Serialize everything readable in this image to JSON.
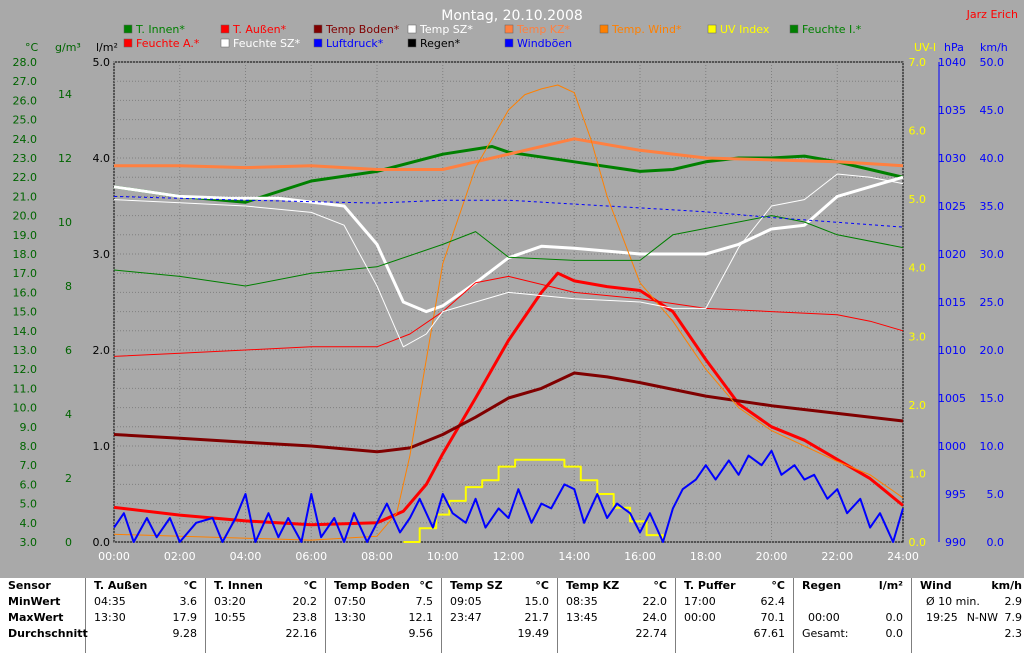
{
  "title": "Montag, 20.10.2008",
  "author": "Jarz Erich",
  "colors": {
    "bg": "#a9a9a9",
    "t_innen": "#008000",
    "t_aussen": "#ff0000",
    "temp_boden": "#800000",
    "temp_sz": "#ffffff",
    "temp_kz": "#ff8040",
    "temp_wind": "#ff8000",
    "uv": "#ffff00",
    "feuchte_i": "#008000",
    "feuchte_a": "#ff0000",
    "feuchte_sz": "#ffffff",
    "luftdruck": "#0000ff",
    "regen": "#000000",
    "windboeen": "#0000ff"
  },
  "legend": [
    {
      "label": "T. Innen*",
      "color": "#008000",
      "row": 0,
      "col": 0
    },
    {
      "label": "T. Außen*",
      "color": "#ff0000",
      "row": 0,
      "col": 1
    },
    {
      "label": "Temp Boden*",
      "color": "#800000",
      "row": 0,
      "col": 2
    },
    {
      "label": "Temp SZ*",
      "color": "#ffffff",
      "row": 0,
      "col": 3
    },
    {
      "label": "Temp KZ*",
      "color": "#ff8040",
      "row": 0,
      "col": 4
    },
    {
      "label": "Temp. Wind*",
      "color": "#ff8000",
      "row": 0,
      "col": 5
    },
    {
      "label": "UV Index",
      "color": "#ffff00",
      "row": 0,
      "col": 6
    },
    {
      "label": "Feuchte I.*",
      "color": "#008000",
      "row": 0,
      "col": 7
    },
    {
      "label": "Feuchte A.*",
      "color": "#ff0000",
      "row": 1,
      "col": 0
    },
    {
      "label": "Feuchte SZ*",
      "color": "#ffffff",
      "row": 1,
      "col": 1
    },
    {
      "label": "Luftdruck*",
      "color": "#0000ff",
      "row": 1,
      "col": 2
    },
    {
      "label": "Regen*",
      "color": "#000000",
      "row": 1,
      "col": 3
    },
    {
      "label": "Windböen",
      "color": "#0000ff",
      "row": 1,
      "col": 4
    }
  ],
  "chart_data": {
    "type": "line",
    "grid": true,
    "axes": {
      "x": {
        "ticks": [
          "00:00",
          "02:00",
          "04:00",
          "06:00",
          "08:00",
          "10:00",
          "12:00",
          "14:00",
          "16:00",
          "18:00",
          "20:00",
          "22:00",
          "24:00"
        ],
        "range": [
          0,
          24
        ]
      },
      "temp_c": {
        "unit": "°C",
        "range": [
          3.0,
          28.0
        ],
        "ticks": [
          "3.0",
          "4.0",
          "5.0",
          "6.0",
          "7.0",
          "8.0",
          "9.0",
          "10.0",
          "11.0",
          "12.0",
          "13.0",
          "14.0",
          "15.0",
          "16.0",
          "17.0",
          "18.0",
          "19.0",
          "20.0",
          "21.0",
          "22.0",
          "23.0",
          "24.0",
          "25.0",
          "26.0",
          "27.0",
          "28.0"
        ]
      },
      "humidity_gm3": {
        "unit": "g/m³",
        "range": [
          0,
          15
        ],
        "ticks": [
          "0",
          "2",
          "4",
          "6",
          "8",
          "10",
          "12",
          "14"
        ]
      },
      "rain_lm2": {
        "unit": "l/m²",
        "range": [
          0.0,
          5.0
        ],
        "ticks": [
          "0.0",
          "1.0",
          "2.0",
          "3.0",
          "4.0",
          "5.0"
        ]
      },
      "uv_index": {
        "unit": "UV-I",
        "range": [
          0.0,
          7.0
        ],
        "ticks": [
          "0.0",
          "1.0",
          "2.0",
          "3.0",
          "4.0",
          "5.0",
          "6.0",
          "7.0"
        ]
      },
      "pressure_hpa": {
        "unit": "hPa",
        "range": [
          990,
          1040
        ],
        "ticks": [
          "990",
          "995",
          "1000",
          "1005",
          "1010",
          "1015",
          "1020",
          "1025",
          "1030",
          "1035",
          "1040"
        ]
      },
      "wind_kmh": {
        "unit": "km/h",
        "range": [
          0.0,
          50.0
        ],
        "ticks": [
          "0.0",
          "5.0",
          "10.0",
          "15.0",
          "20.0",
          "25.0",
          "30.0",
          "35.0",
          "40.0",
          "45.0",
          "50.0"
        ]
      }
    },
    "series": [
      {
        "name": "T. Innen*",
        "axis": "temp_c",
        "color": "#008000",
        "width": 3,
        "x": [
          0,
          2,
          4,
          6,
          8,
          10,
          11.5,
          12,
          14,
          16,
          17,
          18,
          19,
          20,
          21,
          22,
          23,
          24
        ],
        "y": [
          21.5,
          21.0,
          20.7,
          21.8,
          22.3,
          23.2,
          23.6,
          23.3,
          22.8,
          22.3,
          22.4,
          22.8,
          23.0,
          23.0,
          23.1,
          22.8,
          22.4,
          22.0
        ]
      },
      {
        "name": "T. Außen*",
        "axis": "temp_c",
        "color": "#ff0000",
        "width": 3,
        "x": [
          0,
          2,
          4,
          6,
          8,
          8.8,
          9.5,
          10,
          11,
          12,
          13,
          13.5,
          14,
          15,
          16,
          17,
          18,
          19,
          20,
          21,
          22,
          23,
          24
        ],
        "y": [
          4.8,
          4.4,
          4.1,
          3.9,
          4.0,
          4.6,
          6.0,
          7.6,
          10.5,
          13.5,
          16.0,
          17.0,
          16.6,
          16.3,
          16.1,
          15.0,
          12.5,
          10.2,
          9.0,
          8.3,
          7.3,
          6.3,
          4.9
        ]
      },
      {
        "name": "Temp Boden*",
        "axis": "temp_c",
        "color": "#800000",
        "width": 3,
        "x": [
          0,
          2,
          4,
          6,
          8,
          9,
          10,
          11,
          12,
          13,
          14,
          15,
          16,
          18,
          20,
          22,
          24
        ],
        "y": [
          8.6,
          8.4,
          8.2,
          8.0,
          7.7,
          7.9,
          8.6,
          9.5,
          10.5,
          11.0,
          11.8,
          11.6,
          11.3,
          10.6,
          10.1,
          9.7,
          9.3
        ]
      },
      {
        "name": "Temp SZ*",
        "axis": "temp_c",
        "color": "#ffffff",
        "width": 3,
        "x": [
          0,
          2,
          3.5,
          5,
          7,
          8,
          8.8,
          9.5,
          10,
          11,
          12,
          13,
          14,
          16,
          17,
          18,
          19,
          20,
          21,
          22,
          23,
          24
        ],
        "y": [
          21.5,
          21.0,
          20.9,
          20.9,
          20.5,
          18.5,
          15.5,
          15.0,
          15.3,
          16.5,
          17.8,
          18.4,
          18.3,
          18.0,
          18.0,
          18.0,
          18.5,
          19.3,
          19.5,
          21.0,
          21.5,
          22.0
        ]
      },
      {
        "name": "Temp KZ*",
        "axis": "temp_c",
        "color": "#ff8040",
        "width": 3,
        "x": [
          0,
          2,
          4,
          6,
          8,
          10,
          12,
          14,
          16,
          18,
          20,
          22,
          24
        ],
        "y": [
          22.6,
          22.6,
          22.5,
          22.6,
          22.4,
          22.4,
          23.2,
          24.0,
          23.4,
          23.0,
          22.9,
          22.8,
          22.6
        ]
      },
      {
        "name": "Temp. Wind*",
        "axis": "temp_c",
        "color": "#ff8000",
        "width": 1,
        "x": [
          0,
          6,
          8,
          8.6,
          9,
          9.5,
          10,
          11,
          12,
          12.5,
          13,
          13.5,
          14,
          14.5,
          15,
          16,
          17,
          18,
          19,
          20,
          21,
          22,
          23,
          24
        ],
        "y": [
          3.4,
          3.1,
          3.3,
          4.5,
          7.5,
          12.5,
          17.5,
          22.5,
          25.5,
          26.3,
          26.6,
          26.8,
          26.4,
          24.0,
          21.0,
          16.5,
          14.5,
          12.0,
          10.0,
          8.8,
          8.0,
          7.2,
          6.5,
          5.3
        ]
      },
      {
        "name": "Feuchte I.*",
        "axis": "humidity_gm3",
        "color": "#008000",
        "width": 1,
        "x": [
          0,
          2,
          4,
          6,
          8,
          10,
          11,
          12,
          14,
          16,
          17,
          18,
          20,
          21,
          22,
          24
        ],
        "y": [
          8.5,
          8.3,
          8.0,
          8.4,
          8.6,
          9.3,
          9.7,
          8.9,
          8.8,
          8.8,
          9.6,
          9.8,
          10.2,
          10.0,
          9.6,
          9.2
        ]
      },
      {
        "name": "Feuchte A.*",
        "axis": "humidity_gm3",
        "color": "#ff0000",
        "width": 1,
        "x": [
          0,
          2,
          4,
          6,
          8,
          9,
          10,
          11,
          12,
          14,
          16,
          18,
          20,
          22,
          23,
          24
        ],
        "y": [
          5.8,
          5.9,
          6.0,
          6.1,
          6.1,
          6.5,
          7.2,
          8.1,
          8.3,
          7.8,
          7.6,
          7.3,
          7.2,
          7.1,
          6.9,
          6.6
        ]
      },
      {
        "name": "Feuchte SZ*",
        "axis": "humidity_gm3",
        "color": "#ffffff",
        "width": 1,
        "x": [
          0,
          2,
          4,
          6,
          7,
          8,
          8.8,
          9.5,
          10,
          12,
          14,
          16,
          17,
          18,
          19,
          20,
          21,
          22,
          23,
          24
        ],
        "y": [
          10.7,
          10.6,
          10.5,
          10.3,
          9.9,
          8.0,
          6.1,
          6.5,
          7.2,
          7.8,
          7.6,
          7.5,
          7.3,
          7.3,
          9.2,
          10.5,
          10.7,
          11.5,
          11.4,
          11.2
        ]
      },
      {
        "name": "Luftdruck*",
        "axis": "pressure_hpa",
        "color": "#0000ff",
        "width": 1,
        "dash": [
          3,
          3
        ],
        "x": [
          0,
          4,
          8,
          10,
          12,
          14,
          16,
          18,
          20,
          22,
          24
        ],
        "y": [
          1026.0,
          1025.6,
          1025.3,
          1025.6,
          1025.6,
          1025.2,
          1024.8,
          1024.4,
          1023.8,
          1023.3,
          1022.8
        ]
      },
      {
        "name": "UV Index",
        "axis": "uv_index",
        "color": "#ffff00",
        "width": 2,
        "step": true,
        "x": [
          8.8,
          9.3,
          9.8,
          10.2,
          10.7,
          11.2,
          11.7,
          12.2,
          12.7,
          13.2,
          13.7,
          14.2,
          14.7,
          15.2,
          15.7,
          16.2,
          16.7
        ],
        "y": [
          0.0,
          0.2,
          0.4,
          0.6,
          0.8,
          0.9,
          1.1,
          1.2,
          1.2,
          1.2,
          1.1,
          0.9,
          0.7,
          0.5,
          0.3,
          0.1,
          0.0
        ]
      },
      {
        "name": "Windböen",
        "axis": "wind_kmh",
        "color": "#0000ff",
        "width": 2,
        "x": [
          0,
          0.3,
          0.6,
          1,
          1.3,
          1.7,
          2,
          2.5,
          3,
          3.3,
          3.7,
          4,
          4.3,
          4.7,
          5,
          5.3,
          5.7,
          6,
          6.3,
          6.7,
          7,
          7.3,
          7.7,
          8,
          8.3,
          8.7,
          9,
          9.3,
          9.7,
          10,
          10.3,
          10.7,
          11,
          11.3,
          11.7,
          12,
          12.3,
          12.7,
          13,
          13.3,
          13.7,
          14,
          14.3,
          14.7,
          15,
          15.3,
          15.7,
          16,
          16.3,
          16.7,
          17,
          17.3,
          17.7,
          18,
          18.3,
          18.7,
          19,
          19.3,
          19.7,
          20,
          20.3,
          20.7,
          21,
          21.3,
          21.7,
          22,
          22.3,
          22.7,
          23,
          23.3,
          23.7,
          24
        ],
        "y": [
          1.5,
          3.0,
          0.0,
          2.5,
          0.5,
          2.5,
          0.0,
          2.0,
          2.5,
          0.0,
          2.5,
          5.0,
          0.0,
          3.0,
          0.5,
          2.5,
          0.0,
          5.0,
          0.5,
          2.5,
          0.0,
          3.0,
          0.0,
          2.0,
          4.0,
          1.0,
          2.5,
          4.5,
          1.5,
          5.0,
          3.0,
          2.0,
          4.5,
          1.5,
          3.5,
          2.5,
          5.5,
          2.0,
          4.0,
          3.5,
          6.0,
          5.5,
          2.0,
          5.0,
          2.5,
          4.0,
          3.0,
          1.0,
          3.0,
          0.0,
          3.5,
          5.5,
          6.5,
          8.0,
          6.5,
          8.5,
          7.0,
          9.0,
          8.0,
          9.5,
          7.0,
          8.0,
          6.5,
          7.0,
          4.5,
          5.5,
          3.0,
          4.5,
          1.5,
          3.0,
          0.0,
          3.5
        ]
      }
    ]
  },
  "summary": [
    {
      "sensor": "T. Außen",
      "unit": "°C",
      "min_time": "04:35",
      "min": "3.6",
      "max_time": "13:30",
      "max": "17.9",
      "avg": "9.28"
    },
    {
      "sensor": "T. Innen",
      "unit": "°C",
      "min_time": "03:20",
      "min": "20.2",
      "max_time": "10:55",
      "max": "23.8",
      "avg": "22.16"
    },
    {
      "sensor": "Temp Boden",
      "unit": "°C",
      "min_time": "07:50",
      "min": "7.5",
      "max_time": "13:30",
      "max": "12.1",
      "avg": "9.56"
    },
    {
      "sensor": "Temp SZ",
      "unit": "°C",
      "min_time": "09:05",
      "min": "15.0",
      "max_time": "23:47",
      "max": "21.7",
      "avg": "19.49"
    },
    {
      "sensor": "Temp KZ",
      "unit": "°C",
      "min_time": "08:35",
      "min": "22.0",
      "max_time": "13:45",
      "max": "24.0",
      "avg": "22.74"
    },
    {
      "sensor": "T. Puffer",
      "unit": "°C",
      "min_time": "17:00",
      "min": "62.4",
      "max_time": "00:00",
      "max": "70.1",
      "avg": "67.61"
    }
  ],
  "summary_labels": {
    "sensor": "Sensor",
    "min": "MinWert",
    "max": "MaxWert",
    "avg": "Durchschnitt"
  },
  "rain": {
    "sensor": "Regen",
    "unit": "l/m²",
    "time": "00:00",
    "value": "0.0",
    "total_label": "Gesamt:",
    "total": "0.0"
  },
  "wind": {
    "sensor": "Wind",
    "unit": "km/h",
    "avg_label": "Ø 10 min.",
    "avg": "2.9",
    "max_time": "19:25",
    "max_dir": "N-NW",
    "max": "7.9",
    "last": "2.3"
  }
}
